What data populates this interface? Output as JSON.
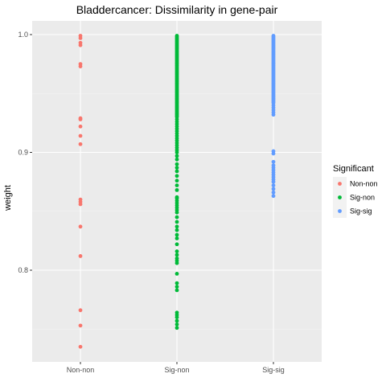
{
  "chart_data": {
    "type": "scatter",
    "title": "Bladdercancer: Dissimilarity in gene-pair",
    "xlabel": "",
    "ylabel": "weight",
    "categories": [
      "Non-non",
      "Sig-non",
      "Sig-sig"
    ],
    "ylim": [
      0.736,
      1.0
    ],
    "yticks": [
      0.8,
      0.9,
      1.0
    ],
    "ytick_labels": [
      "0.8",
      "0.9",
      "1.0"
    ],
    "grid": true,
    "legend": {
      "title": "Significant",
      "placement": "right",
      "entries": [
        "Non-non",
        "Sig-non",
        "Sig-sig"
      ]
    },
    "series": [
      {
        "name": "Non-non",
        "color": "#F8766D",
        "category": "Non-non",
        "values": [
          0.999,
          0.997,
          0.993,
          0.991,
          0.975,
          0.973,
          0.929,
          0.928,
          0.922,
          0.914,
          0.907,
          0.86,
          0.858,
          0.856,
          0.837,
          0.812,
          0.766,
          0.753,
          0.735
        ]
      },
      {
        "name": "Sig-non",
        "color": "#00BA38",
        "category": "Sig-non",
        "values": [
          0.999,
          0.998,
          0.997,
          0.996,
          0.995,
          0.994,
          0.993,
          0.992,
          0.991,
          0.99,
          0.989,
          0.988,
          0.987,
          0.986,
          0.985,
          0.984,
          0.983,
          0.982,
          0.981,
          0.98,
          0.979,
          0.978,
          0.977,
          0.976,
          0.975,
          0.974,
          0.973,
          0.972,
          0.971,
          0.97,
          0.969,
          0.968,
          0.967,
          0.966,
          0.965,
          0.964,
          0.963,
          0.962,
          0.961,
          0.96,
          0.959,
          0.958,
          0.957,
          0.956,
          0.955,
          0.954,
          0.953,
          0.952,
          0.951,
          0.95,
          0.949,
          0.948,
          0.947,
          0.946,
          0.945,
          0.944,
          0.943,
          0.942,
          0.941,
          0.94,
          0.939,
          0.938,
          0.937,
          0.936,
          0.935,
          0.934,
          0.933,
          0.932,
          0.931,
          0.93,
          0.928,
          0.926,
          0.924,
          0.922,
          0.92,
          0.918,
          0.916,
          0.914,
          0.912,
          0.91,
          0.908,
          0.906,
          0.904,
          0.902,
          0.9,
          0.897,
          0.894,
          0.89,
          0.887,
          0.884,
          0.88,
          0.876,
          0.872,
          0.868,
          0.862,
          0.861,
          0.859,
          0.857,
          0.855,
          0.853,
          0.851,
          0.849,
          0.845,
          0.841,
          0.837,
          0.834,
          0.83,
          0.827,
          0.822,
          0.816,
          0.813,
          0.81,
          0.808,
          0.806,
          0.797,
          0.789,
          0.786,
          0.783,
          0.764,
          0.762,
          0.76,
          0.757,
          0.754,
          0.751
        ]
      },
      {
        "name": "Sig-sig",
        "color": "#619CFF",
        "category": "Sig-sig",
        "values": [
          0.999,
          0.998,
          0.997,
          0.996,
          0.995,
          0.994,
          0.993,
          0.992,
          0.991,
          0.99,
          0.989,
          0.988,
          0.987,
          0.986,
          0.985,
          0.984,
          0.983,
          0.982,
          0.981,
          0.98,
          0.979,
          0.978,
          0.977,
          0.976,
          0.975,
          0.974,
          0.973,
          0.972,
          0.971,
          0.97,
          0.969,
          0.968,
          0.967,
          0.966,
          0.965,
          0.964,
          0.963,
          0.962,
          0.961,
          0.96,
          0.959,
          0.958,
          0.957,
          0.956,
          0.955,
          0.954,
          0.953,
          0.952,
          0.951,
          0.95,
          0.949,
          0.948,
          0.947,
          0.946,
          0.945,
          0.944,
          0.943,
          0.942,
          0.94,
          0.938,
          0.936,
          0.934,
          0.932,
          0.901,
          0.899,
          0.892,
          0.889,
          0.887,
          0.885,
          0.883,
          0.881,
          0.879,
          0.877,
          0.875,
          0.872,
          0.869,
          0.866,
          0.863
        ]
      }
    ]
  }
}
